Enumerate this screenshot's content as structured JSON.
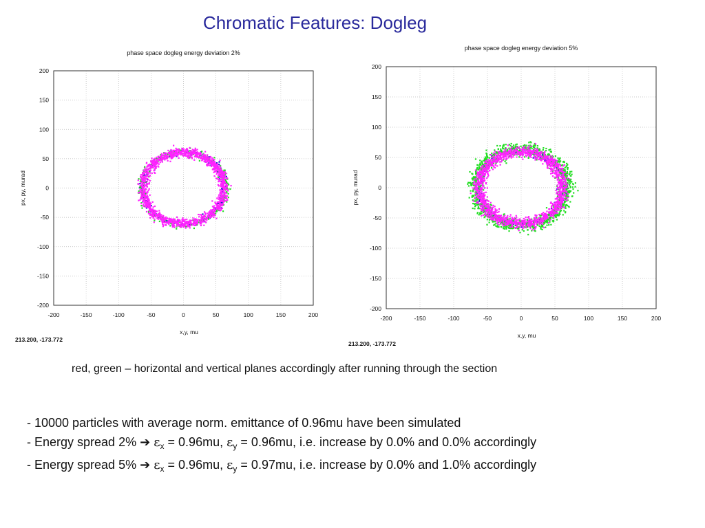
{
  "slide": {
    "title": "Chromatic Features: Dogleg",
    "caption": "red, green – horizontal and vertical planes accordingly after running through the section",
    "bullets": [
      {
        "text": "- 10000 particles with average norm. emittance of 0.96mu have been simulated"
      },
      {
        "pre": "- Energy spread 2% ",
        "arrow": "➔",
        "eps": "ε",
        "sub_x": "x",
        "mid1": " = 0.96mu, ",
        "sub_y": "y",
        "mid2": " = 0.96mu, i.e. increase by 0.0% and 0.0% accordingly"
      },
      {
        "pre": "- Energy spread 5% ",
        "arrow": "➔",
        "eps": "ε",
        "sub_x": "x",
        "mid1": " = 0.96mu, ",
        "sub_y": "y",
        "mid2": " = 0.97mu, i.e. increase by 0.0% and 1.0% accordingly"
      }
    ]
  },
  "chart_data": [
    {
      "type": "scatter",
      "title": "phase space dogleg energy deviation 2%",
      "xlabel": "x,y, mu",
      "ylabel": "px, py, murad",
      "xlim": [
        -200,
        200
      ],
      "ylim": [
        -200,
        200
      ],
      "xticks": [
        -200,
        -150,
        -100,
        -50,
        0,
        50,
        100,
        150,
        200
      ],
      "yticks": [
        200,
        150,
        100,
        50,
        0,
        -50,
        -100,
        -150,
        -200
      ],
      "grid": true,
      "coordinate_readout": "213.200, -173.772",
      "series": [
        {
          "color": "#1a1acc",
          "shape": "ring",
          "rx": 63,
          "ry": 62,
          "band": 2.5,
          "count": 260
        },
        {
          "color": "#22dd22",
          "shape": "ring",
          "rx": 65,
          "ry": 62,
          "band": 3,
          "count": 320
        },
        {
          "color": "#ff22ff",
          "shape": "ring",
          "rx": 62,
          "ry": 61,
          "band": 4,
          "count": 1400
        }
      ]
    },
    {
      "type": "scatter",
      "title": "phase space dogleg energy deviation 5%",
      "xlabel": "x,y, mu",
      "ylabel": "px, py, murad",
      "xlim": [
        -200,
        200
      ],
      "ylim": [
        -200,
        200
      ],
      "xticks": [
        -200,
        -150,
        -100,
        -50,
        0,
        50,
        100,
        150,
        200
      ],
      "yticks": [
        200,
        150,
        100,
        50,
        0,
        -50,
        -100,
        -150,
        -200
      ],
      "grid": true,
      "coordinate_readout": "213.200, -173.772",
      "series": [
        {
          "color": "#1a1acc",
          "shape": "ring",
          "rx": 64,
          "ry": 60,
          "band": 3,
          "count": 280
        },
        {
          "color": "#22dd22",
          "shape": "ring",
          "rx": 68,
          "ry": 64,
          "band": 5.5,
          "count": 1300
        },
        {
          "color": "#ff22ff",
          "shape": "ring",
          "rx": 62,
          "ry": 60,
          "band": 4.5,
          "count": 1500
        }
      ]
    }
  ]
}
